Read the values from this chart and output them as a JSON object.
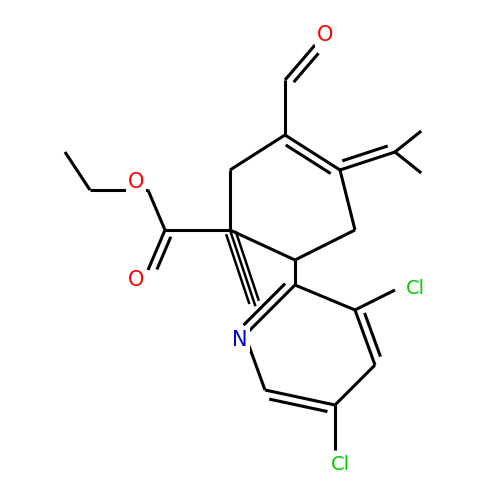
{
  "background_color": "#ffffff",
  "line_color": "#000000",
  "line_width": 2.2,
  "atom_colors": {
    "O": "#ff0000",
    "N": "#0000cc",
    "Cl": "#00cc00",
    "C": "#000000"
  },
  "font_size_atom": 15
}
